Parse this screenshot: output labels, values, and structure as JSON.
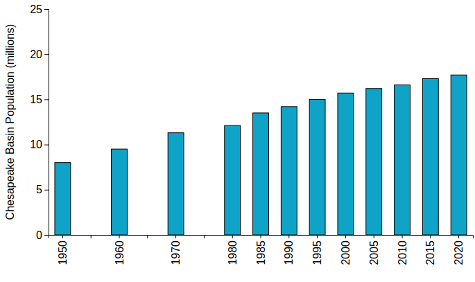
{
  "chart_data": {
    "type": "bar",
    "y_label": "Chesapeake Basin Population (millions)",
    "categories": [
      "1950",
      null,
      "1960",
      null,
      "1970",
      null,
      "1980",
      "1985",
      "1990",
      "1995",
      "2000",
      "2005",
      "2010",
      "2015",
      "2020"
    ],
    "values": [
      8.0,
      null,
      9.5,
      null,
      11.3,
      null,
      12.1,
      13.5,
      14.2,
      15.0,
      15.7,
      16.2,
      16.6,
      17.3,
      17.7
    ],
    "color": "#0fa3c8",
    "ylim": [
      0,
      25
    ],
    "yticks": [
      0,
      5,
      10,
      15,
      20,
      25
    ],
    "grid": false
  }
}
